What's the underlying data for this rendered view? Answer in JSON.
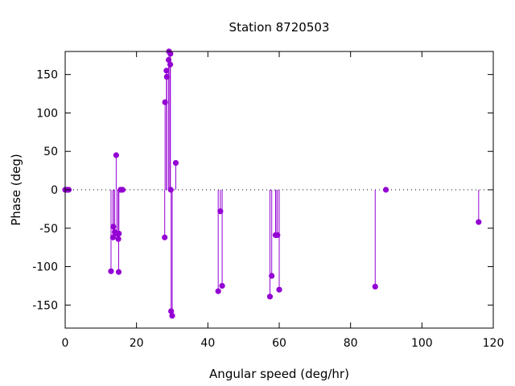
{
  "chart_data": {
    "type": "scatter",
    "style": "impulses-with-points",
    "title": "Station 8720503",
    "xlabel": "Angular speed (deg/hr)",
    "ylabel": "Phase (deg)",
    "xlim": [
      0,
      120
    ],
    "ylim": [
      -180,
      180
    ],
    "xticks": [
      0,
      20,
      40,
      60,
      80,
      100,
      120
    ],
    "yticks": [
      -150,
      -100,
      -50,
      0,
      50,
      100,
      150
    ],
    "zero_line": true,
    "grid": false,
    "color": "#9400d3",
    "points": [
      {
        "x": 0.0,
        "y": 0
      },
      {
        "x": 0.04,
        "y": 0
      },
      {
        "x": 0.08,
        "y": 0
      },
      {
        "x": 0.5,
        "y": 0
      },
      {
        "x": 0.55,
        "y": 0
      },
      {
        "x": 1.0,
        "y": 0
      },
      {
        "x": 12.85,
        "y": -106
      },
      {
        "x": 13.4,
        "y": -62
      },
      {
        "x": 13.5,
        "y": -48
      },
      {
        "x": 13.9,
        "y": -55
      },
      {
        "x": 14.3,
        "y": 45
      },
      {
        "x": 14.5,
        "y": -57
      },
      {
        "x": 14.9,
        "y": -64
      },
      {
        "x": 15.0,
        "y": -107
      },
      {
        "x": 15.05,
        "y": -57
      },
      {
        "x": 15.5,
        "y": 0
      },
      {
        "x": 15.6,
        "y": 0
      },
      {
        "x": 16.1,
        "y": 0
      },
      {
        "x": 27.9,
        "y": -62
      },
      {
        "x": 28.0,
        "y": 114
      },
      {
        "x": 28.4,
        "y": 155
      },
      {
        "x": 28.5,
        "y": 147
      },
      {
        "x": 29.0,
        "y": 169
      },
      {
        "x": 29.1,
        "y": 180
      },
      {
        "x": 29.45,
        "y": 163
      },
      {
        "x": 29.5,
        "y": 177
      },
      {
        "x": 29.6,
        "y": 0
      },
      {
        "x": 29.7,
        "y": -158
      },
      {
        "x": 30.0,
        "y": -164
      },
      {
        "x": 31.0,
        "y": 35
      },
      {
        "x": 42.9,
        "y": -132
      },
      {
        "x": 43.5,
        "y": -28
      },
      {
        "x": 44.0,
        "y": -125
      },
      {
        "x": 57.4,
        "y": -139
      },
      {
        "x": 57.9,
        "y": -112
      },
      {
        "x": 58.98,
        "y": -59
      },
      {
        "x": 59.07,
        "y": -59
      },
      {
        "x": 59.5,
        "y": -59
      },
      {
        "x": 60.0,
        "y": -130
      },
      {
        "x": 86.9,
        "y": -126
      },
      {
        "x": 89.9,
        "y": 0
      },
      {
        "x": 115.9,
        "y": -42
      }
    ]
  }
}
